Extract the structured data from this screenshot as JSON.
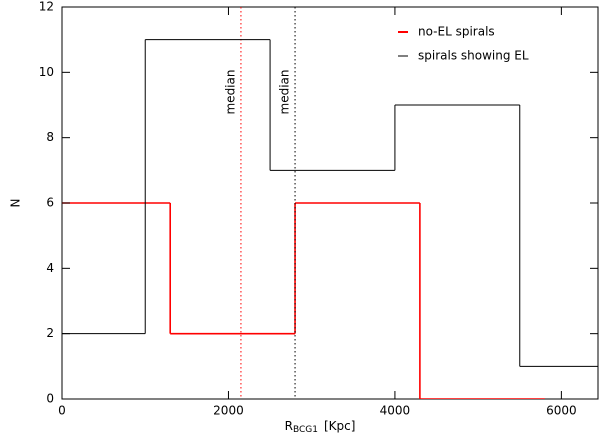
{
  "chart_data": {
    "type": "histogram",
    "xlabel": "R",
    "xlabel_sub": "BCG1",
    "xlabel_unit": "[Kpc]",
    "ylabel": "N",
    "xlim": [
      0,
      6440
    ],
    "ylim": [
      0,
      12
    ],
    "xticks": [
      0,
      2000,
      4000,
      6000
    ],
    "yticks": [
      0,
      2,
      4,
      6,
      8,
      10,
      12
    ],
    "legend": "upper right",
    "series": [
      {
        "name": "no-EL spirals",
        "color": "#ff0000",
        "bins": [
          0,
          1300,
          2800,
          4300,
          5800
        ],
        "values": [
          6,
          2,
          6,
          0
        ],
        "median": 2150,
        "median_label": "median"
      },
      {
        "name": "spirals showing EL",
        "color": "#000000",
        "bins": [
          0,
          1000,
          2500,
          4000,
          5500,
          7000
        ],
        "values": [
          2,
          11,
          7,
          9,
          1
        ],
        "median": 2800,
        "median_label": "median"
      }
    ]
  }
}
